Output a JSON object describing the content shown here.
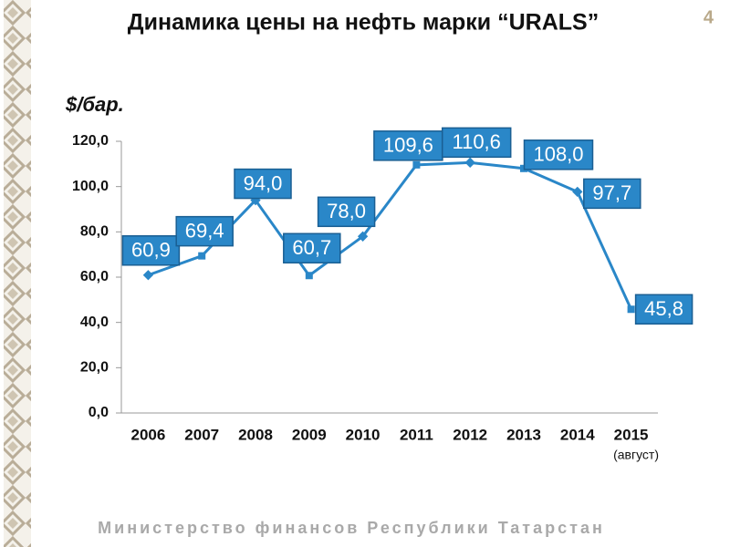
{
  "page_number": "4",
  "footer": "Министерство финансов Республики Татарстан",
  "chart_data": {
    "type": "line",
    "title": "Динамика цены на нефть марки “URALS”",
    "y_label": "$/бар.",
    "x_note": "(август)",
    "categories": [
      "2006",
      "2007",
      "2008",
      "2009",
      "2010",
      "2011",
      "2012",
      "2013",
      "2014",
      "2015"
    ],
    "values": [
      60.9,
      69.4,
      94.0,
      60.7,
      78.0,
      109.6,
      110.6,
      108.0,
      97.7,
      45.8
    ],
    "value_labels": [
      "60,9",
      "69,4",
      "94,0",
      "60,7",
      "78,0",
      "109,6",
      "110,6",
      "108,0",
      "97,7",
      "45,8"
    ],
    "color": "#2a87c8",
    "ylim": [
      0,
      120
    ],
    "yticks": [
      {
        "value": 0,
        "label": "0,0"
      },
      {
        "value": 20,
        "label": "20,0"
      },
      {
        "value": 40,
        "label": "40,0"
      },
      {
        "value": 60,
        "label": "60,0"
      },
      {
        "value": 80,
        "label": "80,0"
      },
      {
        "value": 100,
        "label": "100,0"
      },
      {
        "value": 120,
        "label": "120,0"
      }
    ]
  }
}
